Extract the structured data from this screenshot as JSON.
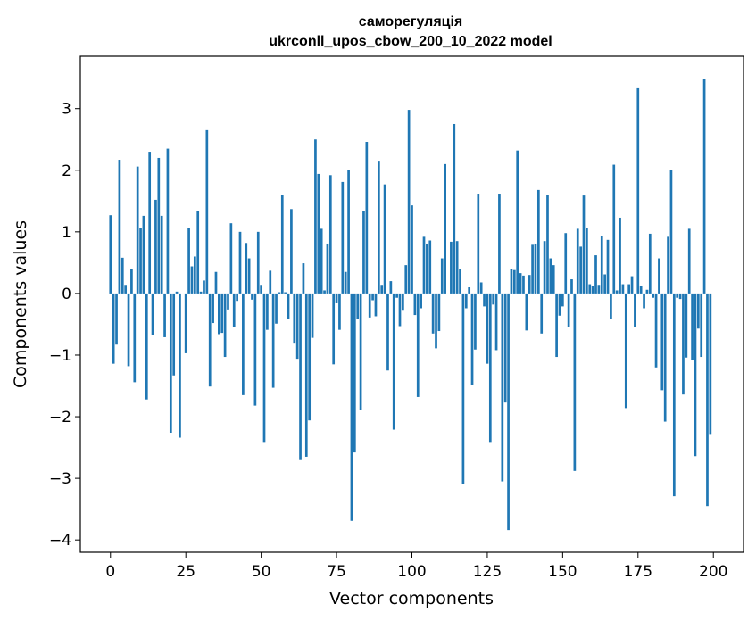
{
  "chart_data": {
    "type": "bar",
    "title_line1": "саморегуляція",
    "title_line2": "ukrconll_upos_cbow_200_10_2022 model",
    "xlabel": "Vector components",
    "ylabel": "Components values",
    "xlim": [
      -10,
      210
    ],
    "ylim": [
      -4.2,
      3.85
    ],
    "xticks": [
      0,
      25,
      50,
      75,
      100,
      125,
      150,
      175,
      200
    ],
    "xtick_labels": [
      "0",
      "25",
      "50",
      "75",
      "100",
      "125",
      "150",
      "175",
      "200"
    ],
    "yticks": [
      -4,
      -3,
      -2,
      -1,
      0,
      1,
      2,
      3
    ],
    "ytick_labels": [
      "−4",
      "−3",
      "−2",
      "−1",
      "0",
      "1",
      "2",
      "3"
    ],
    "bar_color": "#1f77b4",
    "grid": false,
    "values": [
      1.27,
      -1.14,
      -0.83,
      2.17,
      0.58,
      0.14,
      -1.18,
      0.4,
      -1.44,
      2.06,
      1.06,
      1.26,
      -1.72,
      2.3,
      -0.68,
      1.52,
      2.2,
      1.26,
      -0.71,
      2.35,
      -2.26,
      -1.33,
      0.03,
      -2.34,
      0.0,
      -0.97,
      1.06,
      0.44,
      0.6,
      1.34,
      0.03,
      0.21,
      2.65,
      -1.51,
      -0.48,
      0.35,
      -0.66,
      -0.64,
      -1.03,
      -0.26,
      1.14,
      -0.54,
      -0.12,
      1.0,
      -1.65,
      0.82,
      0.57,
      -0.1,
      -1.82,
      1.0,
      0.14,
      -2.41,
      -0.59,
      0.37,
      -1.53,
      -0.49,
      0.02,
      1.6,
      0.02,
      -0.42,
      1.37,
      -0.8,
      -1.06,
      -2.69,
      0.49,
      -2.65,
      -2.06,
      -0.72,
      2.5,
      1.94,
      1.05,
      0.05,
      0.81,
      1.92,
      -1.15,
      -0.16,
      -0.59,
      1.81,
      0.35,
      2.0,
      -3.69,
      -2.58,
      -0.41,
      -1.89,
      1.34,
      2.46,
      -0.39,
      -0.11,
      -0.37,
      2.14,
      0.14,
      1.77,
      -1.25,
      0.2,
      -2.21,
      -0.07,
      -0.53,
      -0.28,
      0.46,
      2.98,
      1.43,
      -0.35,
      -1.68,
      -0.24,
      0.92,
      0.81,
      0.86,
      -0.65,
      -0.89,
      -0.61,
      0.57,
      2.1,
      0.0,
      0.84,
      2.75,
      0.85,
      0.4,
      -3.09,
      -0.24,
      0.1,
      -1.48,
      -0.91,
      1.62,
      0.18,
      -0.21,
      -1.14,
      -2.41,
      -0.18,
      -0.92,
      1.62,
      -3.05,
      -1.77,
      -3.84,
      0.4,
      0.38,
      2.32,
      0.33,
      0.29,
      -0.6,
      0.3,
      0.79,
      0.81,
      1.68,
      -0.65,
      0.85,
      1.6,
      0.57,
      0.46,
      -1.03,
      -0.36,
      -0.21,
      0.98,
      -0.54,
      0.23,
      -2.88,
      1.05,
      0.76,
      1.59,
      1.07,
      0.15,
      0.12,
      0.62,
      0.14,
      0.93,
      0.31,
      0.87,
      -0.42,
      2.09,
      0.05,
      1.23,
      0.15,
      -1.86,
      0.15,
      0.28,
      -0.55,
      3.33,
      0.12,
      -0.24,
      0.06,
      0.97,
      -0.07,
      -1.2,
      0.57,
      -1.57,
      -2.08,
      0.92,
      2.0,
      -3.29,
      -0.07,
      -0.09,
      -1.64,
      -1.04,
      1.05,
      -1.08,
      -2.64,
      -0.57,
      -1.03,
      3.48,
      -3.45,
      -2.28
    ]
  }
}
